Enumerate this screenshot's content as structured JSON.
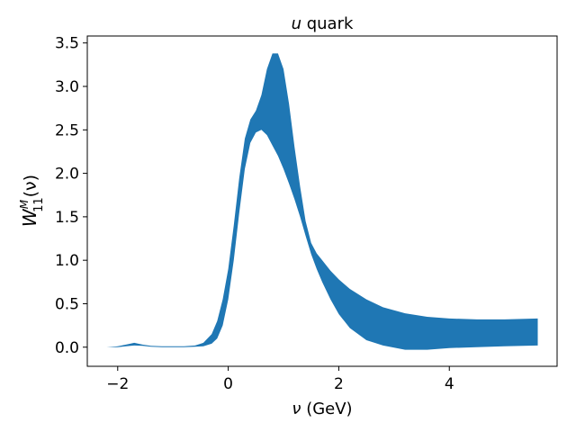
{
  "chart_data": {
    "type": "area",
    "title_var": "u",
    "title_rest": " quark",
    "xlabel_var": "ν",
    "xlabel_rest": " (GeV)",
    "ylabel_base": "W",
    "ylabel_sup": "M",
    "ylabel_sub": "11",
    "ylabel_arg": "(ν)",
    "xlim": [
      -2.55,
      5.95
    ],
    "ylim": [
      -0.22,
      3.58
    ],
    "xticks": [
      -2,
      0,
      2,
      4
    ],
    "xtick_labels": [
      "−2",
      "0",
      "2",
      "4"
    ],
    "yticks": [
      0.0,
      0.5,
      1.0,
      1.5,
      2.0,
      2.5,
      3.0,
      3.5
    ],
    "ytick_labels": [
      "0.0",
      "0.5",
      "1.0",
      "1.5",
      "2.0",
      "2.5",
      "3.0",
      "3.5"
    ],
    "grid": false,
    "color": "#1f77b4",
    "series": [
      {
        "x": [
          -2.2,
          -2.0,
          -1.85,
          -1.7,
          -1.55,
          -1.4,
          -1.2,
          -1.0,
          -0.8,
          -0.6,
          -0.45,
          -0.3,
          -0.2,
          -0.1,
          0.0,
          0.1,
          0.2,
          0.3,
          0.4,
          0.5,
          0.6,
          0.7,
          0.8,
          0.9,
          1.0,
          1.1,
          1.2,
          1.3,
          1.4,
          1.5,
          1.6,
          1.7,
          1.85,
          2.0,
          2.2,
          2.5,
          2.8,
          3.2,
          3.6,
          4.0,
          4.5,
          5.0,
          5.6
        ],
        "upper": [
          0.0,
          0.01,
          0.03,
          0.05,
          0.03,
          0.015,
          0.01,
          0.01,
          0.01,
          0.02,
          0.05,
          0.15,
          0.3,
          0.55,
          0.9,
          1.4,
          1.95,
          2.4,
          2.62,
          2.72,
          2.9,
          3.2,
          3.38,
          3.38,
          3.2,
          2.8,
          2.3,
          1.85,
          1.45,
          1.2,
          1.08,
          1.0,
          0.88,
          0.78,
          0.67,
          0.55,
          0.46,
          0.39,
          0.35,
          0.33,
          0.32,
          0.32,
          0.33
        ],
        "lower": [
          0.0,
          0.0,
          0.01,
          0.02,
          0.015,
          0.005,
          0.0,
          0.0,
          0.0,
          0.005,
          0.01,
          0.04,
          0.1,
          0.25,
          0.55,
          1.0,
          1.55,
          2.05,
          2.35,
          2.47,
          2.5,
          2.44,
          2.32,
          2.2,
          2.05,
          1.88,
          1.7,
          1.5,
          1.28,
          1.07,
          0.9,
          0.75,
          0.55,
          0.38,
          0.22,
          0.08,
          0.02,
          -0.03,
          -0.03,
          -0.01,
          0.0,
          0.01,
          0.02
        ]
      }
    ]
  }
}
